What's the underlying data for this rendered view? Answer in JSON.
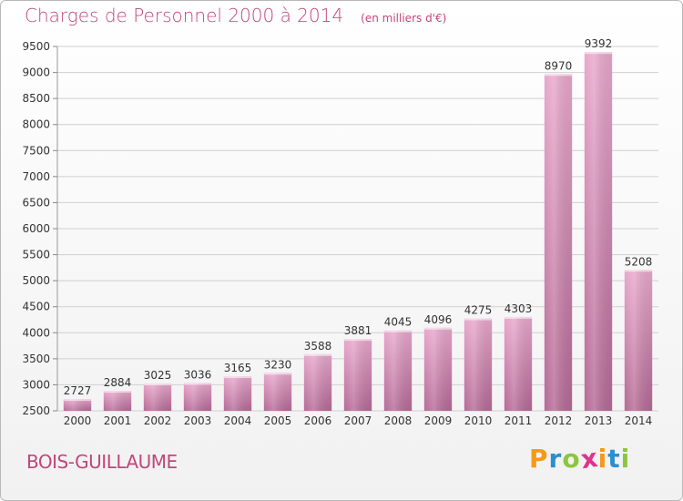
{
  "header": {
    "title": "Charges de Personnel 2000 à 2014",
    "subtitle": "(en milliers d'€)"
  },
  "footer": {
    "town": "BOIS-GUILLAUME",
    "brand_letters": [
      "P",
      "r",
      "o",
      "x",
      "i",
      "t",
      "i"
    ],
    "brand_colors": [
      "#f39a1c",
      "#2a8fd0",
      "#8cc63f",
      "#e0338a",
      "#f39a1c",
      "#2a8fd0",
      "#8cc63f"
    ]
  },
  "colors": {
    "bar_top": "#e8a8cc",
    "bar_bottom": "#b56a95",
    "grid": "#d0d0d0",
    "axis_text": "#333333",
    "accent": "#c0477a"
  },
  "chart_data": {
    "type": "bar",
    "title": "Charges de Personnel 2000 à 2014",
    "subtitle": "(en milliers d'€)",
    "xlabel": "",
    "ylabel": "",
    "categories": [
      "2000",
      "2001",
      "2002",
      "2003",
      "2004",
      "2005",
      "2006",
      "2007",
      "2008",
      "2009",
      "2010",
      "2011",
      "2012",
      "2013",
      "2014"
    ],
    "values": [
      2727,
      2884,
      3025,
      3036,
      3165,
      3230,
      3588,
      3881,
      4045,
      4096,
      4275,
      4303,
      8970,
      9392,
      5208
    ],
    "ylim": [
      2500,
      9500
    ],
    "yticks": [
      2500,
      3000,
      3500,
      4000,
      4500,
      5000,
      5500,
      6000,
      6500,
      7000,
      7500,
      8000,
      8500,
      9000,
      9500
    ],
    "grid": true,
    "data_labels": true
  }
}
